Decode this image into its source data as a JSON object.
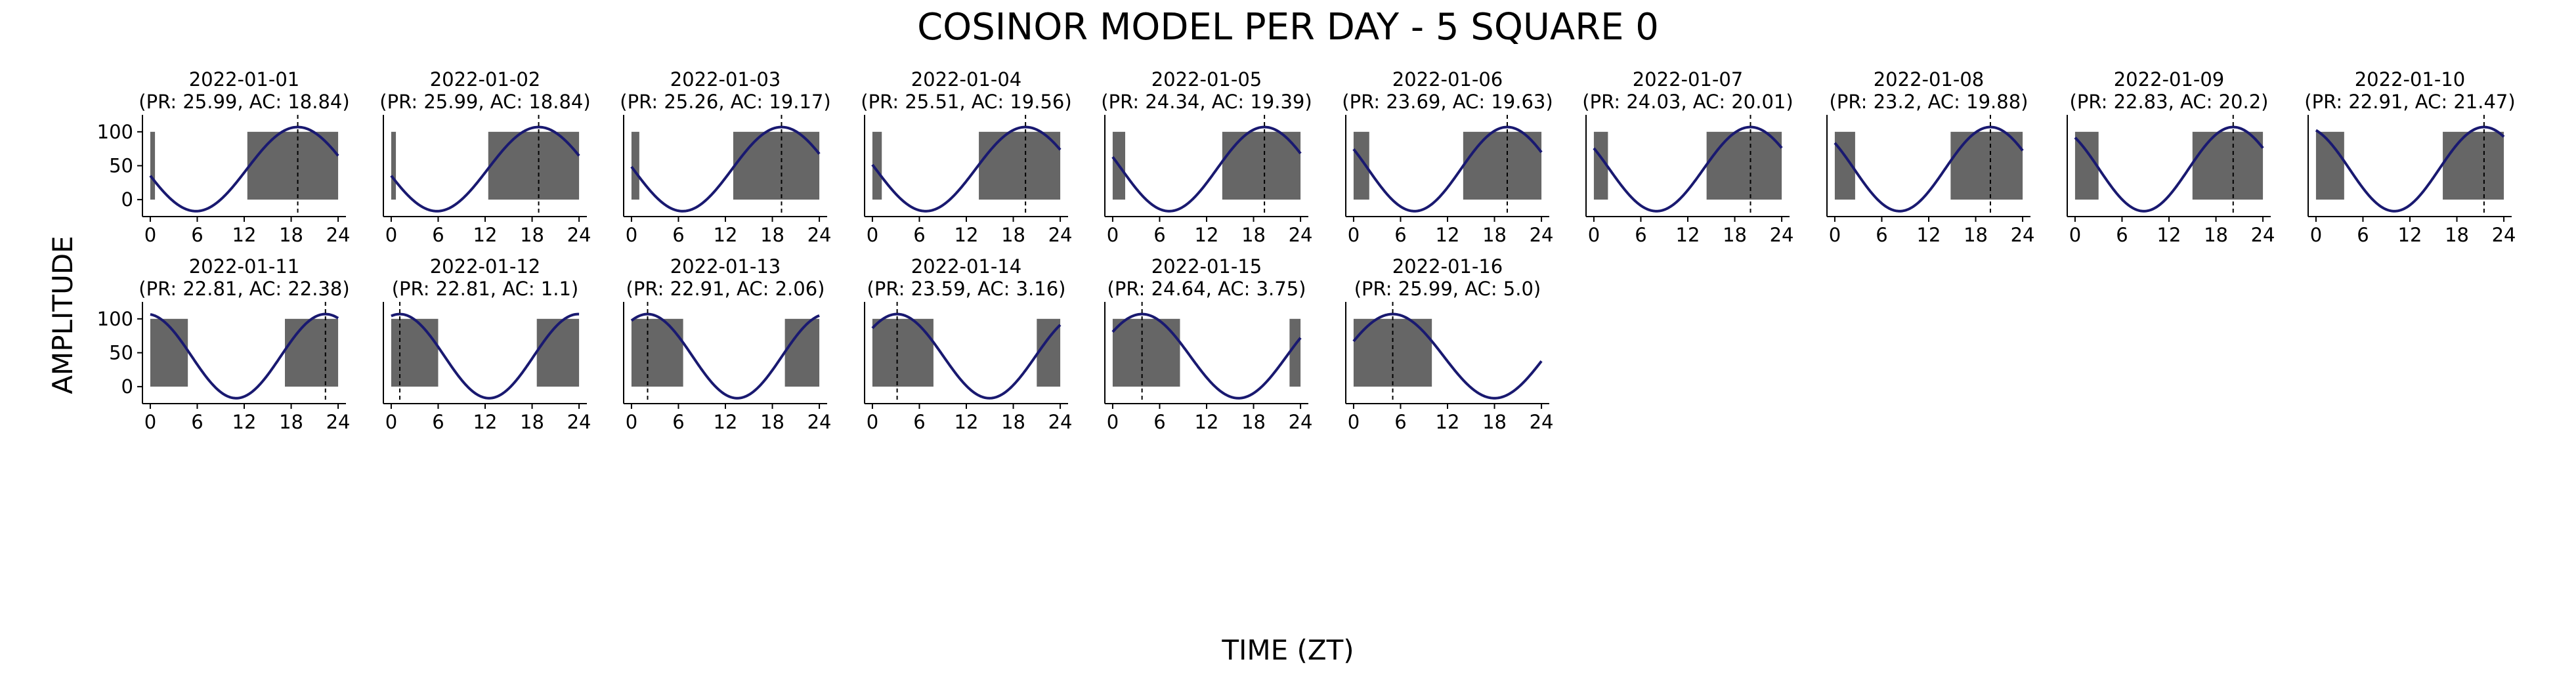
{
  "chart_data": {
    "type": "line",
    "title": "COSINOR MODEL PER DAY - 5 SQUARE 0",
    "xlabel": "TIME (ZT)",
    "ylabel": "AMPLITUDE",
    "xlim": [
      -1,
      25
    ],
    "ylim": [
      -25,
      125
    ],
    "xticks": [
      0,
      6,
      12,
      18,
      24
    ],
    "yticks": [
      0,
      50,
      100
    ],
    "grid": false,
    "legend": "none",
    "layout": {
      "rows": 2,
      "cols": 10
    },
    "colors": {
      "curve": "#191970",
      "active": "#666666",
      "acrophase": "#000000"
    },
    "model": {
      "mesor": 45,
      "amplitude": 62
    },
    "panels": [
      {
        "date": "2022-01-01",
        "subtitle": "(PR: 25.99, AC: 18.84)",
        "period": 25.99,
        "acrophase": 18.84,
        "active": [
          [
            0,
            0.6
          ],
          [
            12.4,
            24
          ]
        ]
      },
      {
        "date": "2022-01-02",
        "subtitle": "(PR: 25.99, AC: 18.84)",
        "period": 25.99,
        "acrophase": 18.84,
        "active": [
          [
            0,
            0.6
          ],
          [
            12.4,
            24
          ]
        ]
      },
      {
        "date": "2022-01-03",
        "subtitle": "(PR: 25.26, AC: 19.17)",
        "period": 25.26,
        "acrophase": 19.17,
        "active": [
          [
            0,
            1.0
          ],
          [
            13.0,
            24
          ]
        ]
      },
      {
        "date": "2022-01-04",
        "subtitle": "(PR: 25.51, AC: 19.56)",
        "period": 25.51,
        "acrophase": 19.56,
        "active": [
          [
            0,
            1.2
          ],
          [
            13.6,
            24
          ]
        ]
      },
      {
        "date": "2022-01-05",
        "subtitle": "(PR: 24.34, AC: 19.39)",
        "period": 24.34,
        "acrophase": 19.39,
        "active": [
          [
            0,
            1.6
          ],
          [
            14.0,
            24
          ]
        ]
      },
      {
        "date": "2022-01-06",
        "subtitle": "(PR: 23.69, AC: 19.63)",
        "period": 23.69,
        "acrophase": 19.63,
        "active": [
          [
            0,
            2.0
          ],
          [
            14.0,
            24
          ]
        ]
      },
      {
        "date": "2022-01-07",
        "subtitle": "(PR: 24.03, AC: 20.01)",
        "period": 24.03,
        "acrophase": 20.01,
        "active": [
          [
            0,
            1.8
          ],
          [
            14.4,
            24
          ]
        ]
      },
      {
        "date": "2022-01-08",
        "subtitle": "(PR: 23.2, AC: 19.88)",
        "period": 23.2,
        "acrophase": 19.88,
        "active": [
          [
            0,
            2.6
          ],
          [
            14.8,
            24
          ]
        ]
      },
      {
        "date": "2022-01-09",
        "subtitle": "(PR: 22.83, AC: 20.2)",
        "period": 22.83,
        "acrophase": 20.2,
        "active": [
          [
            0,
            3.0
          ],
          [
            15.0,
            24
          ]
        ]
      },
      {
        "date": "2022-01-10",
        "subtitle": "(PR: 22.91, AC: 21.47)",
        "period": 22.91,
        "acrophase": 21.47,
        "active": [
          [
            0,
            3.6
          ],
          [
            16.2,
            24
          ]
        ]
      },
      {
        "date": "2022-01-11",
        "subtitle": "(PR: 22.81, AC: 22.38)",
        "period": 22.81,
        "acrophase": 22.38,
        "active": [
          [
            0,
            4.8
          ],
          [
            17.2,
            24
          ]
        ]
      },
      {
        "date": "2022-01-12",
        "subtitle": "(PR: 22.81, AC: 1.1)",
        "period": 22.81,
        "acrophase": 1.1,
        "active": [
          [
            0,
            6.0
          ],
          [
            18.6,
            24
          ]
        ]
      },
      {
        "date": "2022-01-13",
        "subtitle": "(PR: 22.91, AC: 2.06)",
        "period": 22.91,
        "acrophase": 2.06,
        "active": [
          [
            0,
            6.6
          ],
          [
            19.6,
            24
          ]
        ]
      },
      {
        "date": "2022-01-14",
        "subtitle": "(PR: 23.59, AC: 3.16)",
        "period": 23.59,
        "acrophase": 3.16,
        "active": [
          [
            0,
            7.8
          ],
          [
            21.0,
            24
          ]
        ]
      },
      {
        "date": "2022-01-15",
        "subtitle": "(PR: 24.64, AC: 3.75)",
        "period": 24.64,
        "acrophase": 3.75,
        "active": [
          [
            0,
            8.6
          ],
          [
            22.6,
            24
          ]
        ]
      },
      {
        "date": "2022-01-16",
        "subtitle": "(PR: 25.99, AC: 5.0)",
        "period": 25.99,
        "acrophase": 5.0,
        "active": [
          [
            0,
            10.0
          ]
        ]
      }
    ]
  }
}
